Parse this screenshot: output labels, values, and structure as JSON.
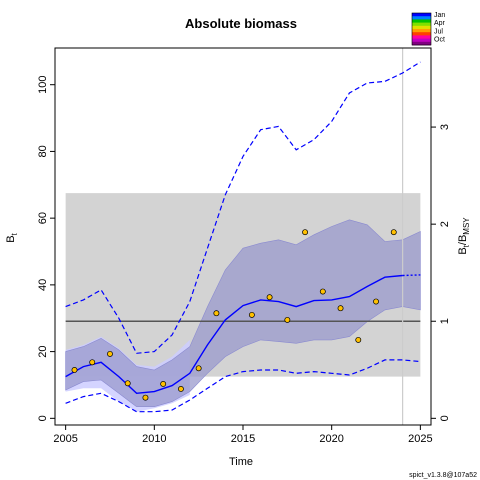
{
  "chart_data": {
    "type": "line",
    "title": "Absolute biomass",
    "xlabel": "Time",
    "ylabel_left": "B",
    "ylabel_left_sub": "t",
    "ylabel_right": "B",
    "ylabel_right_sub1": "t",
    "ylabel_right_mid": "/B",
    "ylabel_right_sub2": "MSY",
    "xlim": [
      2004.4,
      2025.6
    ],
    "ylim": [
      -2,
      111
    ],
    "right_axis_scale": 29.1,
    "x_ticks": [
      2005,
      2010,
      2015,
      2020,
      2025
    ],
    "y_ticks": [
      0,
      20,
      40,
      60,
      80,
      100
    ],
    "y_ticks_right": [
      0,
      1,
      2,
      3
    ],
    "bmsy_band": {
      "x": [
        2005,
        2025
      ],
      "y": [
        12.5,
        67.5
      ],
      "color": "#d3d3d3"
    },
    "bmsy_line": 29.1,
    "vline_x": 2024,
    "observations": {
      "x": [
        2005.5,
        2006.5,
        2007.5,
        2008.5,
        2009.5,
        2010.5,
        2011.5,
        2012.5,
        2013.5,
        2015.5,
        2016.5,
        2017.5,
        2018.5,
        2019.5,
        2020.5,
        2021.5,
        2022.5,
        2023.5
      ],
      "y": [
        14.5,
        16.8,
        19.3,
        10.5,
        6.2,
        10.3,
        8.8,
        15.0,
        31.5,
        31.0,
        36.3,
        29.5,
        55.8,
        38.0,
        33.0,
        23.5,
        35.0,
        55.8
      ],
      "color": "#ffc000"
    },
    "estimate": {
      "x": [
        2005,
        2006,
        2007,
        2008,
        2009,
        2010,
        2011,
        2012,
        2013,
        2014,
        2015,
        2016,
        2017,
        2018,
        2019,
        2020,
        2021,
        2022,
        2023,
        2024
      ],
      "y": [
        12.5,
        15.5,
        16.8,
        12.5,
        7.5,
        8.0,
        9.8,
        13.5,
        22.0,
        29.5,
        33.8,
        35.5,
        35.0,
        33.5,
        35.3,
        35.5,
        36.5,
        39.5,
        42.3,
        42.8
      ],
      "forecast_x": [
        2024,
        2025
      ],
      "forecast_y": [
        42.8,
        43.0
      ],
      "color": "#0000ff"
    },
    "ci_inner": {
      "x": [
        2005,
        2006,
        2007,
        2008,
        2009,
        2010,
        2011,
        2012,
        2013,
        2014,
        2015,
        2016,
        2017,
        2018,
        2019,
        2020,
        2021,
        2022,
        2023,
        2024,
        2025
      ],
      "lower": [
        8.5,
        11.0,
        11.5,
        7.5,
        3.5,
        3.5,
        5.0,
        8.0,
        13.5,
        18.5,
        21.5,
        23.5,
        23.0,
        22.5,
        23.5,
        23.5,
        24.5,
        29.0,
        32.5,
        33.5,
        32.5
      ],
      "upper": [
        20.0,
        21.5,
        24.0,
        20.5,
        15.5,
        14.5,
        17.5,
        21.5,
        33.5,
        44.5,
        51.0,
        52.5,
        53.5,
        52.0,
        55.0,
        57.5,
        59.5,
        58.0,
        53.0,
        53.5,
        56.0
      ],
      "color": "#9999cc"
    },
    "ci_outer": {
      "x": [
        2005,
        2006,
        2007,
        2008,
        2009,
        2010,
        2011,
        2012
      ],
      "lower": [
        8.0,
        9.0,
        9.0,
        5.0,
        2.0,
        3.0,
        4.5,
        7.0
      ],
      "upper": [
        20.5,
        22.0,
        24.5,
        21.0,
        16.0,
        15.5,
        18.5,
        23.5
      ],
      "color": "#ccccff"
    },
    "ci_dashed": {
      "x": [
        2005,
        2006,
        2007,
        2008,
        2009,
        2010,
        2011,
        2012,
        2013,
        2014,
        2015,
        2016,
        2017,
        2018,
        2019,
        2020,
        2021,
        2022,
        2023,
        2024,
        2025
      ],
      "lower": [
        4.5,
        6.5,
        7.5,
        5.0,
        2.0,
        2.0,
        2.5,
        5.5,
        9.0,
        12.5,
        14.0,
        14.5,
        14.5,
        13.5,
        14.0,
        13.5,
        13.0,
        15.0,
        17.5,
        17.5,
        17.0
      ],
      "upper": [
        33.5,
        35.5,
        38.5,
        30.0,
        19.5,
        20.0,
        25.0,
        35.0,
        51.0,
        67.0,
        78.5,
        86.5,
        87.5,
        80.5,
        83.5,
        89.0,
        97.5,
        100.5,
        101.0,
        103.5,
        106.8
      ]
    },
    "legend": {
      "labels": [
        "Jan",
        "Apr",
        "Jul",
        "Oct"
      ],
      "colors": [
        "#0000ff",
        "#0080ff",
        "#00c000",
        "#80e000",
        "#e0e000",
        "#ffa000",
        "#ff4000",
        "#ff00a0",
        "#c000c0",
        "#800080"
      ]
    },
    "footer": "spict_v1.3.8@107a52"
  }
}
